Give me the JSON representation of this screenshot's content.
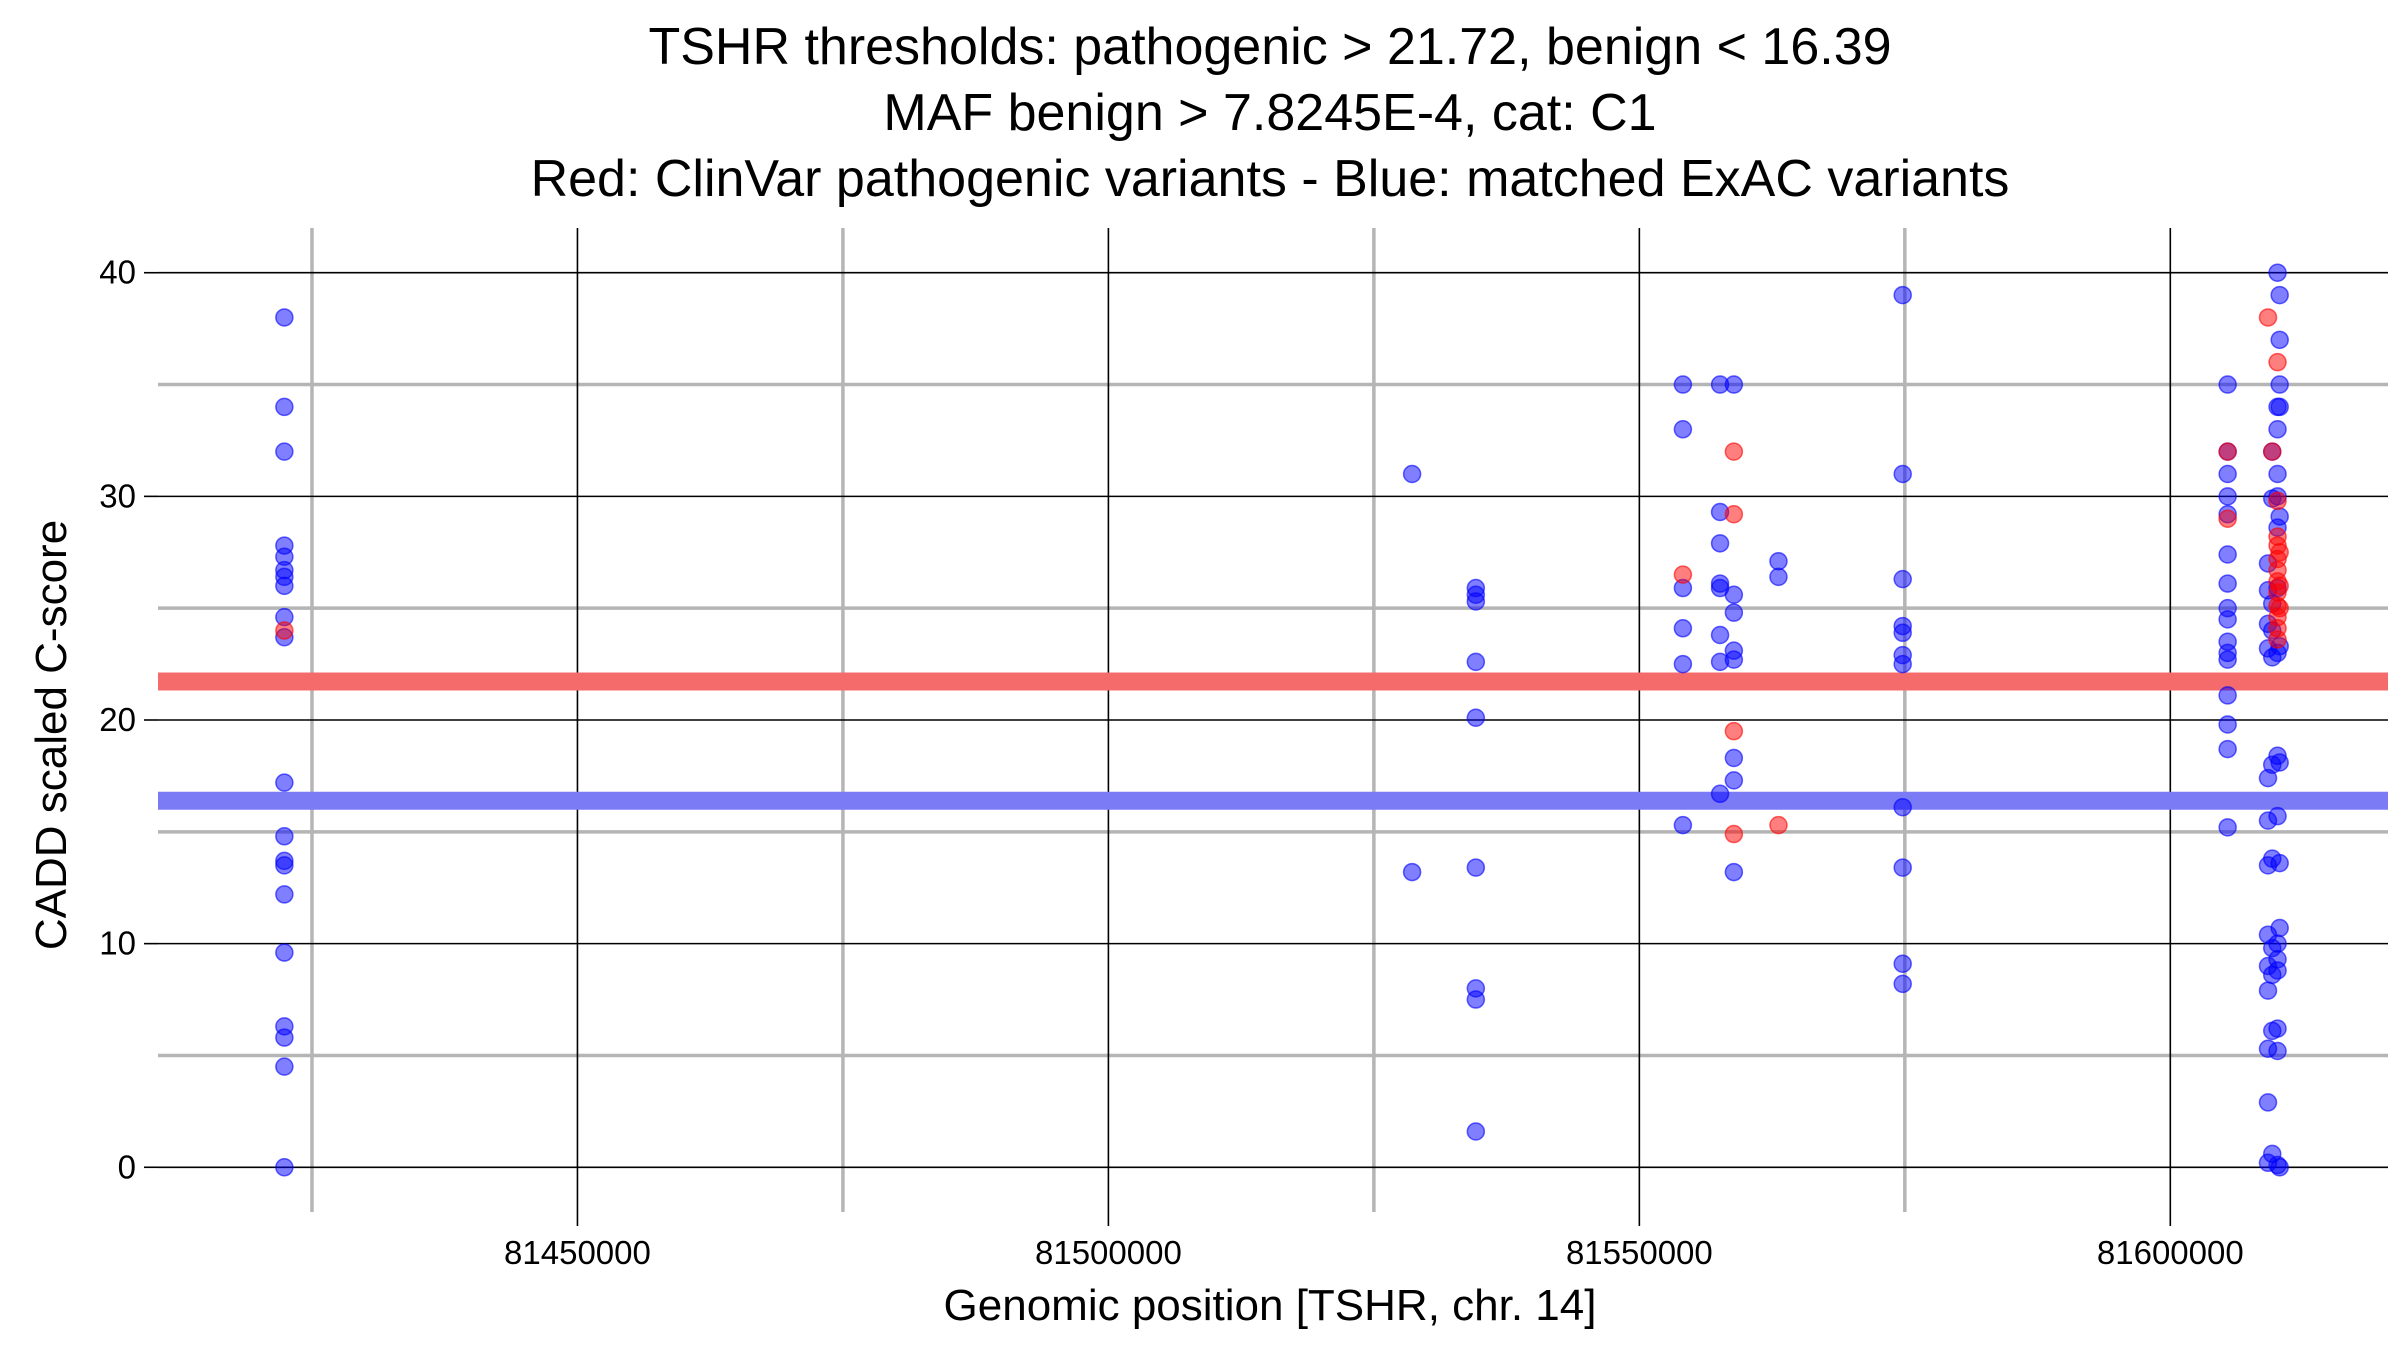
{
  "chart_data": {
    "type": "scatter",
    "title_lines": [
      "TSHR thresholds: pathogenic > 21.72, benign < 16.39",
      "MAF benign > 7.8245E-4, cat: C1",
      "Red: ClinVar pathogenic variants - Blue: matched ExAC variants"
    ],
    "xlabel": "Genomic position [TSHR, chr. 14]",
    "ylabel": "CADD scaled C-score",
    "xlim": [
      81410500,
      81620500
    ],
    "ylim": [
      -2,
      42
    ],
    "x_ticks": [
      81450000,
      81500000,
      81550000,
      81600000
    ],
    "x_tick_labels": [
      "81450000",
      "81500000",
      "81550000",
      "81600000"
    ],
    "y_ticks": [
      0,
      10,
      20,
      30,
      40
    ],
    "y_tick_labels": [
      "0",
      "10",
      "20",
      "30",
      "40"
    ],
    "minor_x": [
      81425000,
      81475000,
      81525000,
      81575000
    ],
    "minor_y": [
      5,
      15,
      25,
      35
    ],
    "grid": true,
    "thresholds": [
      {
        "label": "pathogenic",
        "value": 21.72,
        "color": "#f56b6b"
      },
      {
        "label": "benign",
        "value": 16.39,
        "color": "#7b7bf5"
      }
    ],
    "colors": {
      "clinvar": "#f03c3c",
      "exac": "#3a3ae8"
    },
    "series": [
      {
        "name": "ClinVar pathogenic variants",
        "color": "#ff0000",
        "points": [
          [
            81422400,
            24.0
          ],
          [
            81554100,
            26.5
          ],
          [
            81558900,
            32.0
          ],
          [
            81558900,
            29.2
          ],
          [
            81558900,
            19.5
          ],
          [
            81558900,
            14.9
          ],
          [
            81563100,
            15.3
          ],
          [
            81605400,
            32.0
          ],
          [
            81605400,
            29.0
          ],
          [
            81609200,
            38.0
          ],
          [
            81609600,
            32.0
          ],
          [
            81610100,
            36.0
          ],
          [
            81610100,
            29.8
          ],
          [
            81610100,
            28.2
          ],
          [
            81610100,
            27.8
          ],
          [
            81610100,
            27.2
          ],
          [
            81610100,
            26.7
          ],
          [
            81610100,
            26.2
          ],
          [
            81610100,
            25.7
          ],
          [
            81610100,
            25.1
          ],
          [
            81610100,
            24.6
          ],
          [
            81610100,
            24.1
          ],
          [
            81610100,
            23.6
          ],
          [
            81610300,
            27.5
          ],
          [
            81610300,
            26.0
          ],
          [
            81610300,
            25.0
          ]
        ]
      },
      {
        "name": "matched ExAC variants",
        "color": "#0000ff",
        "points": [
          [
            81422400,
            38.0
          ],
          [
            81422400,
            34.0
          ],
          [
            81422400,
            32.0
          ],
          [
            81422400,
            27.8
          ],
          [
            81422400,
            27.3
          ],
          [
            81422400,
            26.7
          ],
          [
            81422400,
            26.4
          ],
          [
            81422400,
            26.0
          ],
          [
            81422400,
            24.6
          ],
          [
            81422400,
            23.7
          ],
          [
            81422400,
            17.2
          ],
          [
            81422400,
            14.8
          ],
          [
            81422400,
            13.7
          ],
          [
            81422400,
            13.5
          ],
          [
            81422400,
            12.2
          ],
          [
            81422400,
            9.6
          ],
          [
            81422400,
            6.3
          ],
          [
            81422400,
            5.8
          ],
          [
            81422400,
            4.5
          ],
          [
            81422400,
            0.0
          ],
          [
            81528600,
            31.0
          ],
          [
            81528600,
            13.2
          ],
          [
            81534600,
            25.9
          ],
          [
            81534600,
            25.6
          ],
          [
            81534600,
            25.3
          ],
          [
            81534600,
            22.6
          ],
          [
            81534600,
            20.1
          ],
          [
            81534600,
            13.4
          ],
          [
            81534600,
            8.0
          ],
          [
            81534600,
            7.5
          ],
          [
            81534600,
            1.6
          ],
          [
            81554100,
            35.0
          ],
          [
            81554100,
            33.0
          ],
          [
            81554100,
            25.9
          ],
          [
            81554100,
            24.1
          ],
          [
            81554100,
            22.5
          ],
          [
            81554100,
            15.3
          ],
          [
            81557600,
            35.0
          ],
          [
            81557600,
            29.3
          ],
          [
            81557600,
            27.9
          ],
          [
            81557600,
            26.1
          ],
          [
            81557600,
            25.9
          ],
          [
            81557600,
            23.8
          ],
          [
            81557600,
            22.6
          ],
          [
            81557600,
            16.7
          ],
          [
            81558900,
            35.0
          ],
          [
            81558900,
            25.6
          ],
          [
            81558900,
            24.8
          ],
          [
            81558900,
            23.1
          ],
          [
            81558900,
            22.7
          ],
          [
            81558900,
            18.3
          ],
          [
            81558900,
            17.3
          ],
          [
            81558900,
            13.2
          ],
          [
            81563100,
            27.1
          ],
          [
            81563100,
            26.4
          ],
          [
            81574800,
            39.0
          ],
          [
            81574800,
            31.0
          ],
          [
            81574800,
            26.3
          ],
          [
            81574800,
            24.2
          ],
          [
            81574800,
            23.9
          ],
          [
            81574800,
            22.9
          ],
          [
            81574800,
            22.5
          ],
          [
            81574800,
            16.1
          ],
          [
            81574800,
            13.4
          ],
          [
            81574800,
            9.1
          ],
          [
            81574800,
            8.2
          ],
          [
            81605400,
            35.0
          ],
          [
            81605400,
            32.0
          ],
          [
            81605400,
            31.0
          ],
          [
            81605400,
            30.0
          ],
          [
            81605400,
            29.2
          ],
          [
            81605400,
            27.4
          ],
          [
            81605400,
            26.1
          ],
          [
            81605400,
            25.0
          ],
          [
            81605400,
            24.5
          ],
          [
            81605400,
            23.5
          ],
          [
            81605400,
            23.0
          ],
          [
            81605400,
            22.7
          ],
          [
            81605400,
            21.1
          ],
          [
            81605400,
            19.8
          ],
          [
            81605400,
            18.7
          ],
          [
            81605400,
            15.2
          ],
          [
            81609200,
            27.0
          ],
          [
            81609200,
            25.8
          ],
          [
            81609200,
            24.3
          ],
          [
            81609200,
            23.2
          ],
          [
            81609200,
            17.4
          ],
          [
            81609200,
            15.5
          ],
          [
            81609200,
            13.5
          ],
          [
            81609200,
            10.4
          ],
          [
            81609200,
            9.0
          ],
          [
            81609200,
            7.9
          ],
          [
            81609200,
            5.3
          ],
          [
            81609200,
            2.9
          ],
          [
            81609200,
            0.2
          ],
          [
            81609600,
            32.0
          ],
          [
            81609600,
            29.9
          ],
          [
            81609600,
            25.2
          ],
          [
            81609600,
            24.0
          ],
          [
            81609600,
            22.8
          ],
          [
            81609600,
            18.0
          ],
          [
            81609600,
            13.8
          ],
          [
            81609600,
            9.8
          ],
          [
            81609600,
            8.6
          ],
          [
            81609600,
            6.1
          ],
          [
            81609600,
            0.6
          ],
          [
            81610100,
            40.0
          ],
          [
            81610100,
            34.0
          ],
          [
            81610100,
            33.0
          ],
          [
            81610100,
            31.0
          ],
          [
            81610100,
            30.0
          ],
          [
            81610100,
            28.6
          ],
          [
            81610100,
            25.9
          ],
          [
            81610100,
            23.0
          ],
          [
            81610100,
            18.4
          ],
          [
            81610100,
            15.7
          ],
          [
            81610100,
            10.0
          ],
          [
            81610100,
            9.3
          ],
          [
            81610100,
            8.8
          ],
          [
            81610100,
            6.2
          ],
          [
            81610100,
            5.2
          ],
          [
            81610100,
            0.1
          ],
          [
            81610300,
            39.0
          ],
          [
            81610300,
            37.0
          ],
          [
            81610300,
            35.0
          ],
          [
            81610300,
            34.0
          ],
          [
            81610300,
            29.1
          ],
          [
            81610300,
            23.3
          ],
          [
            81610300,
            18.1
          ],
          [
            81610300,
            13.6
          ],
          [
            81610300,
            10.7
          ],
          [
            81610300,
            0.0
          ]
        ]
      }
    ]
  }
}
